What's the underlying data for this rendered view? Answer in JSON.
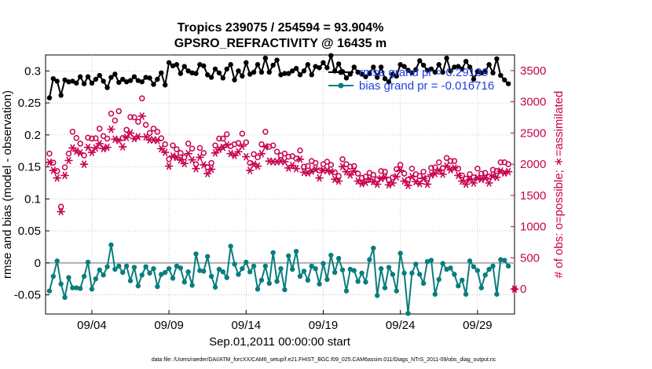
{
  "chart_data": {
    "type": "line",
    "title": "Tropics 239075 / 254594 = 93.904%",
    "subtitle": "GPSRO_REFRACTIVITY @ 16435 m",
    "xlabel": "Sep.01,2011 00:00:00 start",
    "ylabel": "rmse and bias (model - observation)",
    "ylabel_right": "# of obs: o=possible; ∗=assimilated",
    "footnote": "data file: /Users/raeder/DAI/ATM_forcXX/CAM6_setup/f.e21.FHIST_BGC.f09_025.CAM6assim.011/Diags_NTrS_2011-09/obs_diag_output.nc",
    "xlim": [
      1.0,
      31.4
    ],
    "ylim": [
      -0.08,
      0.325
    ],
    "ylim_right": [
      -400,
      3750
    ],
    "x_ticks": [
      4,
      9,
      14,
      19,
      24,
      29
    ],
    "x_tick_labels": [
      "09/04",
      "09/09",
      "09/14",
      "09/19",
      "09/24",
      "09/29"
    ],
    "y_ticks": [
      -0.05,
      0,
      0.05,
      0.1,
      0.15,
      0.2,
      0.25,
      0.3
    ],
    "y_tick_labels": [
      "-0.05",
      "0",
      "0.05",
      "0.1",
      "0.15",
      "0.2",
      "0.25",
      "0.3"
    ],
    "y_right_ticks": [
      0,
      500,
      1000,
      1500,
      2000,
      2500,
      3000,
      3500
    ],
    "y_right_tick_labels": [
      "0",
      "500",
      "1000",
      "1500",
      "2000",
      "2500",
      "3000",
      "3500"
    ],
    "legend": [
      "rmse grand pr = 0.29139",
      "bias grand pr = -0.016716"
    ],
    "legend_position": "top-right",
    "series": [
      {
        "name": "rmse",
        "color": "#000000",
        "x": [
          1.25,
          1.5,
          1.75,
          2,
          2.25,
          2.5,
          2.75,
          3,
          3.25,
          3.5,
          3.75,
          4,
          4.25,
          4.5,
          4.75,
          5,
          5.25,
          5.5,
          5.75,
          6,
          6.25,
          6.5,
          6.75,
          7,
          7.25,
          7.5,
          7.75,
          8,
          8.25,
          8.5,
          8.75,
          9,
          9.25,
          9.5,
          9.75,
          10,
          10.25,
          10.5,
          10.75,
          11,
          11.25,
          11.5,
          11.75,
          12,
          12.25,
          12.5,
          12.75,
          13,
          13.25,
          13.5,
          13.75,
          14,
          14.25,
          14.5,
          14.75,
          15,
          15.25,
          15.5,
          15.75,
          16,
          16.25,
          16.5,
          16.75,
          17,
          17.25,
          17.5,
          17.75,
          18,
          18.25,
          18.5,
          18.75,
          19,
          19.25,
          19.5,
          19.75,
          20,
          20.25,
          20.5,
          20.75,
          21,
          21.25,
          21.5,
          21.75,
          22,
          22.25,
          22.5,
          22.75,
          23,
          23.25,
          23.5,
          23.75,
          24,
          24.25,
          24.5,
          24.75,
          25,
          25.25,
          25.5,
          25.75,
          26,
          26.25,
          26.5,
          26.75,
          27,
          27.25,
          27.5,
          27.75,
          28,
          28.25,
          28.5,
          28.75,
          29,
          29.25,
          29.5,
          29.75,
          30,
          30.25,
          30.5,
          30.75,
          31
        ],
        "values": [
          0.258,
          0.288,
          0.284,
          0.262,
          0.286,
          0.283,
          0.284,
          0.281,
          0.291,
          0.28,
          0.291,
          0.281,
          0.287,
          0.293,
          0.284,
          0.274,
          0.29,
          0.295,
          0.282,
          0.287,
          0.283,
          0.285,
          0.291,
          0.285,
          0.283,
          0.29,
          0.289,
          0.279,
          0.287,
          0.297,
          0.278,
          0.313,
          0.308,
          0.31,
          0.296,
          0.307,
          0.3,
          0.297,
          0.296,
          0.31,
          0.308,
          0.294,
          0.29,
          0.303,
          0.297,
          0.289,
          0.303,
          0.31,
          0.286,
          0.3,
          0.292,
          0.313,
          0.295,
          0.298,
          0.31,
          0.298,
          0.32,
          0.298,
          0.309,
          0.317,
          0.294,
          0.296,
          0.296,
          0.3,
          0.304,
          0.294,
          0.3,
          0.31,
          0.294,
          0.307,
          0.305,
          0.313,
          0.305,
          0.324,
          0.3,
          0.311,
          0.299,
          0.289,
          0.295,
          0.306,
          0.298,
          0.295,
          0.291,
          0.296,
          0.306,
          0.29,
          0.306,
          0.288,
          0.283,
          0.295,
          0.292,
          0.31,
          0.307,
          0.301,
          0.297,
          0.302,
          0.316,
          0.309,
          0.301,
          0.303,
          0.298,
          0.31,
          0.298,
          0.32,
          0.3,
          0.306,
          0.307,
          0.303,
          0.315,
          0.306,
          0.287,
          0.299,
          0.297,
          0.299,
          0.31,
          0.297,
          0.319,
          0.293,
          0.286,
          0.28
        ]
      },
      {
        "name": "bias",
        "color": "#0a7d7d",
        "x": [
          1.25,
          1.5,
          1.75,
          2,
          2.25,
          2.5,
          2.75,
          3,
          3.25,
          3.5,
          3.75,
          4,
          4.25,
          4.5,
          4.75,
          5,
          5.25,
          5.5,
          5.75,
          6,
          6.25,
          6.5,
          6.75,
          7,
          7.25,
          7.5,
          7.75,
          8,
          8.25,
          8.5,
          8.75,
          9,
          9.25,
          9.5,
          9.75,
          10,
          10.25,
          10.5,
          10.75,
          11,
          11.25,
          11.5,
          11.75,
          12,
          12.25,
          12.5,
          12.75,
          13,
          13.25,
          13.5,
          13.75,
          14,
          14.25,
          14.5,
          14.75,
          15,
          15.25,
          15.5,
          15.75,
          16,
          16.25,
          16.5,
          16.75,
          17,
          17.25,
          17.5,
          17.75,
          18,
          18.25,
          18.5,
          18.75,
          19,
          19.25,
          19.5,
          19.75,
          20,
          20.25,
          20.5,
          20.75,
          21,
          21.25,
          21.5,
          21.75,
          22,
          22.25,
          22.5,
          22.75,
          23,
          23.25,
          23.5,
          23.75,
          24,
          24.25,
          24.5,
          24.75,
          25,
          25.25,
          25.5,
          25.75,
          26,
          26.25,
          26.5,
          26.75,
          27,
          27.25,
          27.5,
          27.75,
          28,
          28.25,
          28.5,
          28.75,
          29,
          29.25,
          29.5,
          29.75,
          30,
          30.25,
          30.5,
          30.75,
          31
        ],
        "values": [
          -0.044,
          -0.021,
          0.003,
          -0.033,
          -0.054,
          -0.023,
          -0.039,
          -0.039,
          -0.04,
          -0.021,
          0.001,
          -0.041,
          -0.025,
          -0.011,
          -0.019,
          -0.006,
          0.028,
          -0.01,
          -0.005,
          -0.015,
          -0.005,
          -0.028,
          -0.007,
          -0.036,
          -0.019,
          -0.006,
          -0.016,
          -0.009,
          -0.037,
          -0.018,
          -0.015,
          -0.009,
          -0.024,
          -0.005,
          -0.008,
          -0.03,
          -0.014,
          -0.035,
          0.014,
          -0.012,
          -0.013,
          0.01,
          -0.021,
          -0.038,
          -0.01,
          -0.014,
          -0.023,
          0.026,
          -0.002,
          -0.018,
          -0.009,
          0.001,
          -0.014,
          -0.005,
          -0.041,
          -0.027,
          -0.005,
          -0.032,
          0.016,
          -0.029,
          -0.009,
          -0.042,
          0.011,
          -0.01,
          0.018,
          -0.021,
          -0.013,
          -0.027,
          -0.005,
          -0.009,
          -0.033,
          -0.001,
          -0.026,
          0.012,
          -0.015,
          0.007,
          -0.011,
          -0.044,
          -0.01,
          -0.012,
          -0.029,
          -0.016,
          -0.03,
          0.005,
          0.023,
          -0.051,
          -0.009,
          -0.039,
          -0.007,
          -0.018,
          -0.044,
          0.015,
          -0.016,
          -0.079,
          -0.016,
          -0.002,
          -0.018,
          -0.032,
          0.002,
          0.004,
          -0.049,
          -0.026,
          -0.001,
          -0.01,
          -0.008,
          -0.018,
          -0.036,
          -0.027,
          -0.049,
          0.003,
          -0.006,
          -0.012,
          -0.039,
          -0.019,
          -0.01,
          -0.005,
          -0.049,
          0.005,
          0.004,
          -0.005
        ]
      },
      {
        "name": "obs possible",
        "color": "#c8004f",
        "axis": "right",
        "x": [
          1.25,
          1.5,
          1.75,
          2,
          2.25,
          2.5,
          2.75,
          3,
          3.25,
          3.5,
          3.75,
          4,
          4.25,
          4.5,
          4.75,
          5,
          5.25,
          5.5,
          5.75,
          6,
          6.25,
          6.5,
          6.75,
          7,
          7.25,
          7.5,
          7.75,
          8,
          8.25,
          8.5,
          8.75,
          9,
          9.25,
          9.5,
          9.75,
          10,
          10.25,
          10.5,
          10.75,
          11,
          11.25,
          11.5,
          11.75,
          12,
          12.25,
          12.5,
          12.75,
          13,
          13.25,
          13.5,
          13.75,
          14,
          14.25,
          14.5,
          14.75,
          15,
          15.25,
          15.5,
          15.75,
          16,
          16.25,
          16.5,
          16.75,
          17,
          17.25,
          17.5,
          17.75,
          18,
          18.25,
          18.5,
          18.75,
          19,
          19.25,
          19.5,
          19.75,
          20,
          20.25,
          20.5,
          20.75,
          21,
          21.25,
          21.5,
          21.75,
          22,
          22.25,
          22.5,
          22.75,
          23,
          23.25,
          23.5,
          23.75,
          24,
          24.25,
          24.5,
          24.75,
          25,
          25.25,
          25.5,
          25.75,
          26,
          26.25,
          26.5,
          26.75,
          27,
          27.25,
          27.5,
          27.75,
          28,
          28.25,
          28.5,
          28.75,
          29,
          29.25,
          29.5,
          29.75,
          30,
          30.25,
          30.5,
          30.75,
          31
        ],
        "values": [
          2170,
          2025,
          1890,
          1320,
          1950,
          2170,
          2520,
          2420,
          2330,
          2140,
          2425,
          2410,
          2415,
          2570,
          2450,
          2410,
          2810,
          2700,
          2850,
          2420,
          2550,
          2755,
          2750,
          2680,
          3055,
          2630,
          2500,
          2570,
          2520,
          2415,
          2320,
          2080,
          2300,
          2240,
          2180,
          2110,
          2330,
          2250,
          2000,
          2260,
          2180,
          1950,
          2020,
          2300,
          2410,
          2410,
          2480,
          2290,
          2320,
          2340,
          2490,
          2350,
          2020,
          2160,
          2110,
          2320,
          2520,
          2280,
          2300,
          2200,
          2140,
          2170,
          2120,
          2130,
          2090,
          2220,
          1960,
          1970,
          2050,
          2020,
          1900,
          2000,
          2040,
          1990,
          1870,
          1810,
          2080,
          2000,
          1960,
          1970,
          1850,
          1780,
          1800,
          1860,
          1830,
          1760,
          1890,
          1880,
          1750,
          1790,
          1920,
          1990,
          1850,
          1750,
          1930,
          1840,
          1810,
          1880,
          1770,
          1940,
          1950,
          2030,
          1940,
          2100,
          2050,
          2050,
          1930,
          1820,
          1770,
          1840,
          1790,
          1930,
          1850,
          1860,
          1800,
          1910,
          1890,
          2030,
          2030,
          2000
        ]
      },
      {
        "name": "obs assimilated",
        "color": "#c8004f",
        "axis": "right",
        "x": [
          1.25,
          1.5,
          1.75,
          2,
          2.25,
          2.5,
          2.75,
          3,
          3.25,
          3.5,
          3.75,
          4,
          4.25,
          4.5,
          4.75,
          5,
          5.25,
          5.5,
          5.75,
          6,
          6.25,
          6.5,
          6.75,
          7,
          7.25,
          7.5,
          7.75,
          8,
          8.25,
          8.5,
          8.75,
          9,
          9.25,
          9.5,
          9.75,
          10,
          10.25,
          10.5,
          10.75,
          11,
          11.25,
          11.5,
          11.75,
          12,
          12.25,
          12.5,
          12.75,
          13,
          13.25,
          13.5,
          13.75,
          14,
          14.25,
          14.5,
          14.75,
          15,
          15.25,
          15.5,
          15.75,
          16,
          16.25,
          16.5,
          16.75,
          17,
          17.25,
          17.5,
          17.75,
          18,
          18.25,
          18.5,
          18.75,
          19,
          19.25,
          19.5,
          19.75,
          20,
          20.25,
          20.5,
          20.75,
          21,
          21.25,
          21.5,
          21.75,
          22,
          22.25,
          22.5,
          22.75,
          23,
          23.25,
          23.5,
          23.75,
          24,
          24.25,
          24.5,
          24.75,
          25,
          25.25,
          25.5,
          25.75,
          26,
          26.25,
          26.5,
          26.75,
          27,
          27.25,
          27.5,
          27.75,
          28,
          28.25,
          28.5,
          28.75,
          29,
          29.25,
          29.5,
          29.75,
          30,
          30.25,
          30.5,
          30.75,
          31
        ],
        "values": [
          2030,
          1900,
          1780,
          1240,
          1820,
          2060,
          2260,
          2210,
          2180,
          2000,
          2270,
          2190,
          2260,
          2330,
          2250,
          2270,
          2560,
          2400,
          2380,
          2280,
          2430,
          2500,
          2410,
          2440,
          2770,
          2440,
          2390,
          2390,
          2380,
          2250,
          2190,
          1970,
          2130,
          2110,
          2070,
          2010,
          2170,
          2070,
          1930,
          2110,
          1990,
          1850,
          1920,
          2180,
          2240,
          2270,
          2310,
          2170,
          2140,
          2200,
          2290,
          2120,
          1900,
          2000,
          1970,
          2170,
          2280,
          2050,
          2040,
          2040,
          2050,
          2040,
          1940,
          1980,
          1930,
          2080,
          1870,
          1860,
          1890,
          1920,
          1780,
          1900,
          1900,
          1880,
          1760,
          1730,
          1960,
          1880,
          1830,
          1890,
          1730,
          1690,
          1710,
          1760,
          1720,
          1680,
          1770,
          1790,
          1670,
          1700,
          1800,
          1900,
          1730,
          1660,
          1800,
          1720,
          1690,
          1770,
          1680,
          1830,
          1850,
          1900,
          1840,
          1970,
          1910,
          1940,
          1820,
          1730,
          1680,
          1760,
          1700,
          1780,
          1760,
          1780,
          1700,
          1810,
          1790,
          1890,
          1860,
          1880
        ]
      }
    ]
  }
}
